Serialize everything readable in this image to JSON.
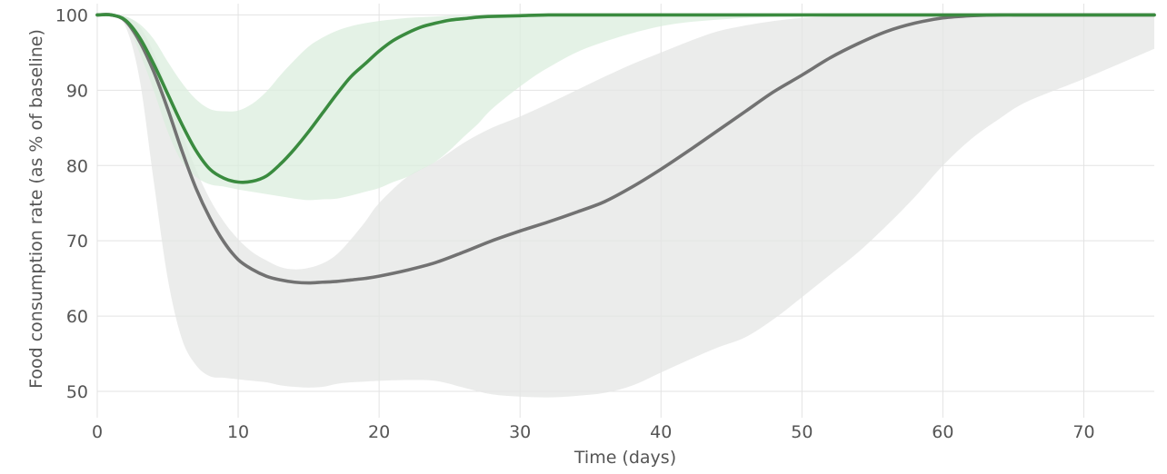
{
  "chart_data": {
    "type": "line",
    "title": "",
    "xlabel": "Time (days)",
    "ylabel": "Food consumption rate (as % of baseline)",
    "xlim": [
      0,
      75
    ],
    "ylim": [
      46.5,
      101.5
    ],
    "xticks": [
      0,
      10,
      20,
      30,
      40,
      50,
      60,
      70
    ],
    "yticks": [
      50,
      60,
      70,
      80,
      90,
      100
    ],
    "grid": true,
    "legend": "none",
    "series": [
      {
        "color": "#3a8b3f",
        "band_color": "#dbeedd",
        "x": [
          0,
          1,
          2,
          3,
          4,
          5,
          6,
          7,
          8,
          9,
          10,
          11,
          12,
          13,
          14,
          15,
          16,
          17,
          18,
          19,
          20,
          21,
          22,
          23,
          24,
          25,
          26,
          27,
          28,
          30,
          32,
          35,
          40,
          45,
          50,
          60,
          70,
          75
        ],
        "values": [
          100,
          100,
          99.3,
          97,
          93.5,
          89.5,
          85.5,
          82,
          79.5,
          78.3,
          77.8,
          77.9,
          78.6,
          80.2,
          82.2,
          84.5,
          87,
          89.5,
          91.8,
          93.5,
          95.2,
          96.6,
          97.6,
          98.4,
          98.9,
          99.3,
          99.5,
          99.7,
          99.8,
          99.9,
          100,
          100,
          100,
          100,
          100,
          100,
          100,
          100
        ],
        "band_upper": [
          100,
          100,
          99.8,
          98.8,
          96.8,
          93.8,
          91,
          88.8,
          87.5,
          87.2,
          87.3,
          88.2,
          89.8,
          92,
          94,
          95.8,
          97,
          97.9,
          98.5,
          98.9,
          99.2,
          99.4,
          99.6,
          99.7,
          99.8,
          99.9,
          99.9,
          100,
          100,
          100,
          100,
          100,
          100,
          100,
          100,
          100,
          100,
          100
        ],
        "band_lower": [
          100,
          100,
          99,
          95,
          90,
          84.5,
          80.5,
          78.5,
          77.5,
          77.2,
          76.8,
          76.5,
          76.2,
          75.9,
          75.6,
          75.4,
          75.5,
          75.6,
          76,
          76.5,
          77,
          77.8,
          78.5,
          79.5,
          80.5,
          82,
          83.8,
          85.5,
          87.5,
          90.5,
          93,
          95.8,
          98.5,
          99.5,
          99.8,
          100,
          100,
          100
        ]
      },
      {
        "color": "#727272",
        "band_color": "#e4e6e4",
        "x": [
          0,
          1,
          2,
          3,
          4,
          5,
          6,
          7,
          8,
          9,
          10,
          11,
          12,
          13,
          14,
          15,
          16,
          17,
          18,
          19,
          20,
          22,
          24,
          26,
          28,
          30,
          32,
          34,
          36,
          38,
          40,
          42,
          44,
          46,
          48,
          50,
          52,
          54,
          56,
          58,
          60,
          62,
          64,
          66,
          70,
          75
        ],
        "values": [
          100,
          100,
          99.2,
          96.5,
          92.5,
          87.5,
          82,
          77,
          73,
          69.8,
          67.5,
          66.2,
          65.3,
          64.8,
          64.5,
          64.4,
          64.5,
          64.6,
          64.8,
          65,
          65.3,
          66.1,
          67.1,
          68.5,
          70,
          71.3,
          72.5,
          73.8,
          75.2,
          77.2,
          79.5,
          82,
          84.6,
          87.2,
          89.8,
          92,
          94.3,
          96.2,
          97.8,
          98.9,
          99.6,
          99.9,
          100,
          100,
          100,
          100
        ],
        "band_upper": [
          100,
          100,
          99.8,
          98.5,
          95,
          90,
          84.5,
          79.5,
          75.5,
          72.5,
          70.2,
          68.5,
          67.4,
          66.5,
          66.2,
          66.4,
          67,
          68.2,
          70.2,
          72.5,
          75,
          78.5,
          80.5,
          83,
          85,
          86.5,
          88.2,
          90,
          91.8,
          93.5,
          95,
          96.5,
          97.8,
          98.6,
          99.2,
          99.6,
          99.8,
          99.9,
          100,
          100,
          100,
          100,
          100,
          100,
          100,
          100
        ],
        "band_lower": [
          100,
          100,
          98.5,
          91.5,
          78,
          65,
          57,
          53.5,
          52,
          51.8,
          51.6,
          51.4,
          51.2,
          50.8,
          50.6,
          50.5,
          50.6,
          51,
          51.2,
          51.3,
          51.4,
          51.5,
          51.4,
          50.5,
          49.6,
          49.3,
          49.2,
          49.4,
          49.8,
          50.8,
          52.5,
          54.2,
          55.8,
          57.2,
          59.6,
          62.5,
          65.5,
          68.5,
          72,
          75.8,
          80,
          83.5,
          86.2,
          88.5,
          91.5,
          95.5
        ]
      }
    ]
  }
}
